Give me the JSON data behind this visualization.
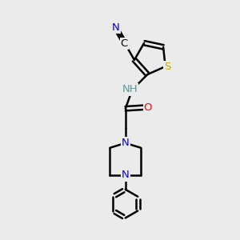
{
  "bg_color": "#ebebeb",
  "bond_color": "#000000",
  "bond_width": 1.8,
  "atom_colors": {
    "N": "#0000ff",
    "O": "#ff0000",
    "S": "#ccaa00",
    "C": "#000000",
    "H": "#5a9a9a"
  },
  "font_size": 9.5,
  "fig_size": [
    3.0,
    3.0
  ],
  "dpi": 100
}
